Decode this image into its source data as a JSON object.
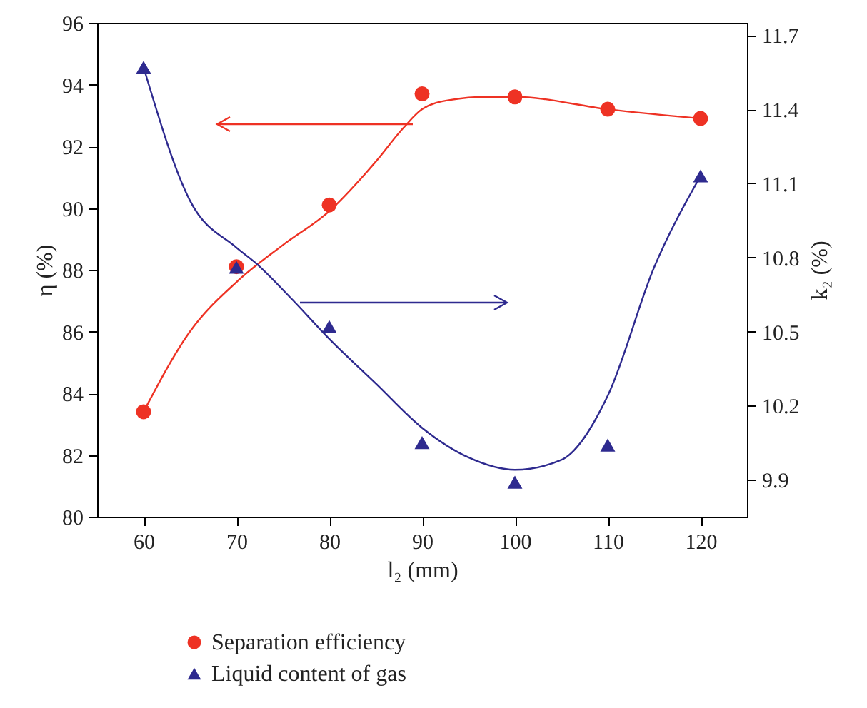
{
  "chart_data": {
    "type": "scatter",
    "xlabel": "l₂ (mm)",
    "ylabel": "η (%)",
    "y2label": "k₂ (%)",
    "x": [
      60,
      70,
      80,
      90,
      100,
      110,
      120
    ],
    "xlim": [
      55,
      125
    ],
    "xticks": [
      60,
      70,
      80,
      90,
      100,
      110,
      120
    ],
    "ylim": [
      80,
      96
    ],
    "yticks": [
      80,
      82,
      84,
      86,
      88,
      90,
      92,
      94,
      96
    ],
    "y2lim": [
      9.75,
      11.75
    ],
    "y2ticks": [
      9.9,
      10.2,
      10.5,
      10.8,
      11.1,
      11.4,
      11.7
    ],
    "series": [
      {
        "name": "Separation efficiency",
        "type": "scatter",
        "marker": "circle",
        "color": "#ee3224",
        "values": [
          83.4,
          88.1,
          90.1,
          93.7,
          93.6,
          93.2,
          92.9
        ]
      },
      {
        "type": "line",
        "color": "#ee3224",
        "x": [
          60,
          65,
          70,
          75,
          80,
          85,
          88,
          90,
          93,
          97,
          100,
          110,
          120
        ],
        "values": [
          83.4,
          86.0,
          87.6,
          88.8,
          89.9,
          91.5,
          92.6,
          93.2,
          93.5,
          93.6,
          93.6,
          93.2,
          92.9
        ]
      },
      {
        "name": "Liquid content of gas",
        "type": "scatter",
        "marker": "triangle",
        "axis": "y2",
        "color": "#2e2a8f",
        "values": [
          11.57,
          10.76,
          10.52,
          10.05,
          9.89,
          10.04,
          11.13
        ]
      },
      {
        "type": "line",
        "axis": "y2",
        "color": "#2e2a8f",
        "x": [
          60,
          65,
          70,
          72,
          76,
          80,
          85,
          90,
          95,
          100,
          105,
          110,
          115,
          120
        ],
        "values": [
          11.57,
          11.03,
          10.84,
          10.78,
          10.63,
          10.47,
          10.29,
          10.11,
          9.99,
          9.94,
          9.98,
          10.24,
          10.76,
          11.13
        ]
      }
    ],
    "grid": false,
    "legend": "bottom"
  }
}
